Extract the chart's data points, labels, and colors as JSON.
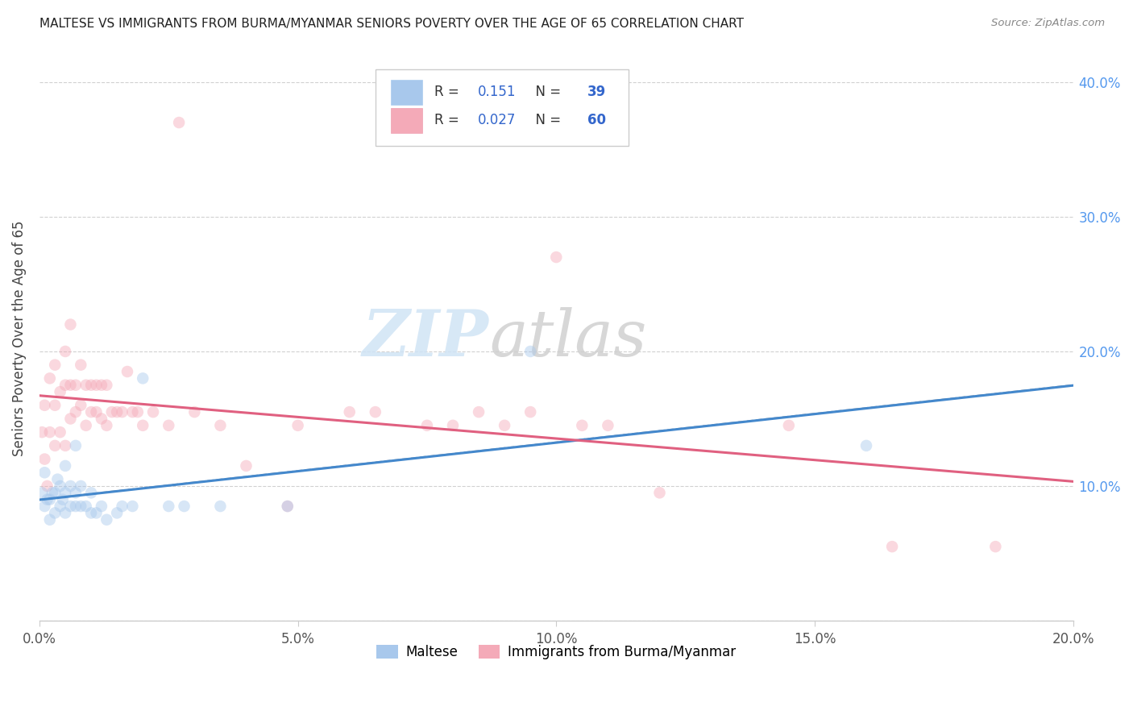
{
  "title": "MALTESE VS IMMIGRANTS FROM BURMA/MYANMAR SENIORS POVERTY OVER THE AGE OF 65 CORRELATION CHART",
  "source": "Source: ZipAtlas.com",
  "ylabel": "Seniors Poverty Over the Age of 65",
  "xlim": [
    0,
    0.2
  ],
  "ylim": [
    0,
    0.42
  ],
  "xticks": [
    0.0,
    0.05,
    0.1,
    0.15,
    0.2
  ],
  "xtick_labels": [
    "0.0%",
    "5.0%",
    "10.0%",
    "15.0%",
    "20.0%"
  ],
  "yticks_right": [
    0.1,
    0.2,
    0.3,
    0.4
  ],
  "ytick_labels_right": [
    "10.0%",
    "20.0%",
    "30.0%",
    "40.0%"
  ],
  "legend1_R": "0.151",
  "legend1_N": "39",
  "legend2_R": "0.027",
  "legend2_N": "60",
  "blue_color": "#a8c8ec",
  "pink_color": "#f4aab8",
  "blue_line_color": "#4488cc",
  "pink_line_color": "#e06080",
  "gray_dash_color": "#aaaaaa",
  "maltese_x": [
    0.0005,
    0.001,
    0.001,
    0.0015,
    0.002,
    0.002,
    0.0025,
    0.003,
    0.003,
    0.0035,
    0.004,
    0.004,
    0.0045,
    0.005,
    0.005,
    0.005,
    0.006,
    0.006,
    0.007,
    0.007,
    0.007,
    0.008,
    0.008,
    0.009,
    0.01,
    0.01,
    0.011,
    0.012,
    0.013,
    0.015,
    0.016,
    0.018,
    0.02,
    0.025,
    0.028,
    0.035,
    0.048,
    0.095,
    0.16
  ],
  "maltese_y": [
    0.095,
    0.085,
    0.11,
    0.09,
    0.075,
    0.09,
    0.095,
    0.08,
    0.095,
    0.105,
    0.085,
    0.1,
    0.09,
    0.08,
    0.095,
    0.115,
    0.085,
    0.1,
    0.085,
    0.095,
    0.13,
    0.085,
    0.1,
    0.085,
    0.08,
    0.095,
    0.08,
    0.085,
    0.075,
    0.08,
    0.085,
    0.085,
    0.18,
    0.085,
    0.085,
    0.085,
    0.085,
    0.2,
    0.13
  ],
  "burma_x": [
    0.0005,
    0.001,
    0.001,
    0.0015,
    0.002,
    0.002,
    0.003,
    0.003,
    0.003,
    0.004,
    0.004,
    0.005,
    0.005,
    0.005,
    0.006,
    0.006,
    0.006,
    0.007,
    0.007,
    0.008,
    0.008,
    0.009,
    0.009,
    0.01,
    0.01,
    0.011,
    0.011,
    0.012,
    0.012,
    0.013,
    0.013,
    0.014,
    0.015,
    0.016,
    0.017,
    0.018,
    0.019,
    0.02,
    0.022,
    0.025,
    0.027,
    0.03,
    0.035,
    0.04,
    0.048,
    0.05,
    0.06,
    0.065,
    0.075,
    0.08,
    0.085,
    0.09,
    0.095,
    0.1,
    0.105,
    0.11,
    0.12,
    0.145,
    0.165,
    0.185
  ],
  "burma_y": [
    0.14,
    0.12,
    0.16,
    0.1,
    0.14,
    0.18,
    0.13,
    0.16,
    0.19,
    0.14,
    0.17,
    0.13,
    0.175,
    0.2,
    0.15,
    0.175,
    0.22,
    0.155,
    0.175,
    0.16,
    0.19,
    0.145,
    0.175,
    0.155,
    0.175,
    0.155,
    0.175,
    0.15,
    0.175,
    0.145,
    0.175,
    0.155,
    0.155,
    0.155,
    0.185,
    0.155,
    0.155,
    0.145,
    0.155,
    0.145,
    0.37,
    0.155,
    0.145,
    0.115,
    0.085,
    0.145,
    0.155,
    0.155,
    0.145,
    0.145,
    0.155,
    0.145,
    0.155,
    0.27,
    0.145,
    0.145,
    0.095,
    0.145,
    0.055,
    0.055
  ],
  "marker_size": 110,
  "alpha": 0.45,
  "figsize": [
    14.06,
    8.92
  ],
  "dpi": 100
}
